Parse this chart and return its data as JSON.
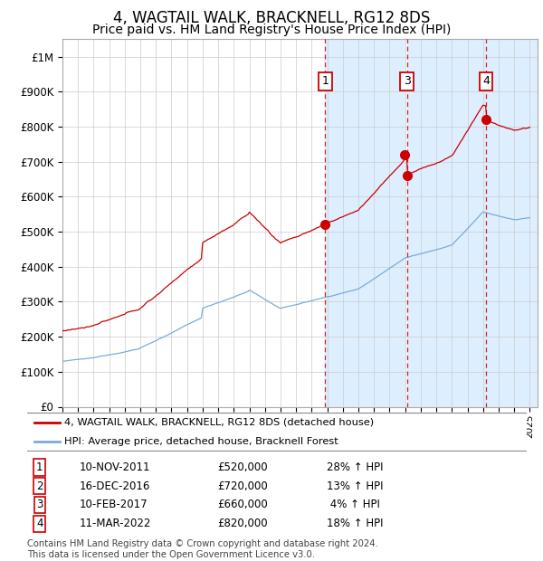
{
  "title": "4, WAGTAIL WALK, BRACKNELL, RG12 8DS",
  "subtitle": "Price paid vs. HM Land Registry's House Price Index (HPI)",
  "title_fontsize": 12,
  "subtitle_fontsize": 10,
  "ylim": [
    0,
    1050000
  ],
  "xlim_start": 1995.0,
  "xlim_end": 2025.5,
  "yticks": [
    0,
    100000,
    200000,
    300000,
    400000,
    500000,
    600000,
    700000,
    800000,
    900000,
    1000000
  ],
  "ytick_labels": [
    "£0",
    "£100K",
    "£200K",
    "£300K",
    "£400K",
    "£500K",
    "£600K",
    "£700K",
    "£800K",
    "£900K",
    "£1M"
  ],
  "sales": [
    {
      "num": 1,
      "year": 2011.87,
      "price": 520000,
      "label": "10-NOV-2011",
      "pct": "28%",
      "show_vline": true,
      "show_box": true
    },
    {
      "num": 2,
      "year": 2016.96,
      "price": 720000,
      "label": "16-DEC-2016",
      "pct": "13%",
      "show_vline": false,
      "show_box": false
    },
    {
      "num": 3,
      "year": 2017.11,
      "price": 660000,
      "label": "10-FEB-2017",
      "pct": "4%",
      "show_vline": true,
      "show_box": true
    },
    {
      "num": 4,
      "year": 2022.19,
      "price": 820000,
      "label": "11-MAR-2022",
      "pct": "18%",
      "show_vline": true,
      "show_box": true
    }
  ],
  "red_line_color": "#cc0000",
  "blue_line_color": "#7aabdb",
  "shade_color": "#ddeeff",
  "vline_color": "#cc0000",
  "legend_line1": "4, WAGTAIL WALK, BRACKNELL, RG12 8DS (detached house)",
  "legend_line2": "HPI: Average price, detached house, Bracknell Forest",
  "footer": "Contains HM Land Registry data © Crown copyright and database right 2024.\nThis data is licensed under the Open Government Licence v3.0.",
  "grid_color": "#cccccc",
  "background_color": "#ffffff",
  "hpi_base_1995": 130000,
  "prop_base_1995": 160000
}
